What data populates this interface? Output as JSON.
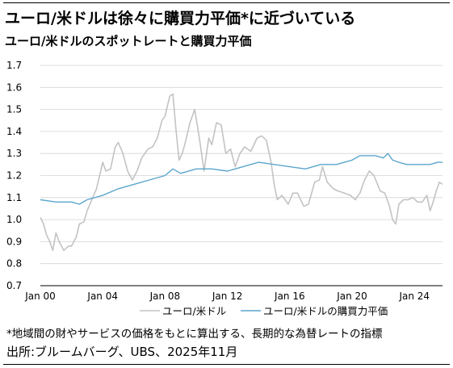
{
  "title": "ユーロ/米ドルは徐々に購買力平価*に近づいている",
  "subtitle": "ユーロ/米ドルのスポットレートと購買力平価",
  "note": "*地域間の財やサービスの価格をもとに算出する、長期的な為替レートの指標",
  "source": "出所:ブルームバーグ、UBS、2025年11月",
  "colors": {
    "spot": "#c3c3c3",
    "ppp": "#5ba6cc"
  },
  "chart_data": {
    "type": "line",
    "title": "ユーロ/米ドルのスポットレートと購買力平価",
    "ylim": [
      0.7,
      1.7
    ],
    "yticks": [
      "0.7",
      "0.8",
      "0.9",
      "1.0",
      "1.1",
      "1.2",
      "1.3",
      "1.4",
      "1.5",
      "1.6",
      "1.7"
    ],
    "xlim": [
      2000,
      2025.8
    ],
    "xticks": [
      {
        "x": 2000,
        "label": "Jan 00"
      },
      {
        "x": 2004,
        "label": "Jan 04"
      },
      {
        "x": 2008,
        "label": "Jan 08"
      },
      {
        "x": 2012,
        "label": "Jan 12"
      },
      {
        "x": 2016,
        "label": "Jan 16"
      },
      {
        "x": 2020,
        "label": "Jan 20"
      },
      {
        "x": 2024,
        "label": "Jan 24"
      }
    ],
    "grid": "horizontal",
    "legend": "bottom",
    "series": [
      {
        "name": "ユーロ/米ドル",
        "color": "#c3c3c3",
        "x": [
          2000.0,
          2000.2,
          2000.4,
          2000.6,
          2000.8,
          2001.0,
          2001.2,
          2001.5,
          2001.8,
          2002.0,
          2002.3,
          2002.5,
          2002.8,
          2003.0,
          2003.3,
          2003.6,
          2003.9,
          2004.0,
          2004.2,
          2004.5,
          2004.8,
          2005.0,
          2005.3,
          2005.6,
          2005.9,
          2006.2,
          2006.5,
          2006.9,
          2007.2,
          2007.5,
          2007.8,
          2008.0,
          2008.3,
          2008.5,
          2008.7,
          2008.9,
          2009.1,
          2009.3,
          2009.6,
          2009.9,
          2010.2,
          2010.5,
          2010.8,
          2011.0,
          2011.3,
          2011.6,
          2011.9,
          2012.2,
          2012.5,
          2012.8,
          2013.1,
          2013.5,
          2013.9,
          2014.2,
          2014.5,
          2014.8,
          2015.0,
          2015.2,
          2015.5,
          2015.9,
          2016.2,
          2016.5,
          2016.9,
          2017.2,
          2017.6,
          2017.9,
          2018.1,
          2018.4,
          2018.8,
          2019.1,
          2019.5,
          2019.9,
          2020.2,
          2020.5,
          2020.8,
          2021.1,
          2021.4,
          2021.8,
          2022.1,
          2022.4,
          2022.6,
          2022.8,
          2023.0,
          2023.3,
          2023.6,
          2023.9,
          2024.2,
          2024.5,
          2024.8,
          2025.0,
          2025.2,
          2025.4,
          2025.6,
          2025.8
        ],
        "values": [
          1.01,
          0.98,
          0.93,
          0.9,
          0.86,
          0.94,
          0.9,
          0.86,
          0.88,
          0.88,
          0.92,
          0.98,
          0.99,
          1.04,
          1.09,
          1.14,
          1.23,
          1.26,
          1.22,
          1.23,
          1.33,
          1.35,
          1.3,
          1.22,
          1.18,
          1.22,
          1.28,
          1.32,
          1.33,
          1.37,
          1.45,
          1.47,
          1.56,
          1.57,
          1.41,
          1.27,
          1.3,
          1.35,
          1.44,
          1.5,
          1.37,
          1.22,
          1.37,
          1.34,
          1.44,
          1.43,
          1.3,
          1.32,
          1.24,
          1.3,
          1.33,
          1.31,
          1.37,
          1.38,
          1.36,
          1.26,
          1.16,
          1.09,
          1.11,
          1.07,
          1.12,
          1.12,
          1.06,
          1.07,
          1.17,
          1.18,
          1.24,
          1.17,
          1.14,
          1.13,
          1.12,
          1.11,
          1.09,
          1.12,
          1.18,
          1.22,
          1.2,
          1.13,
          1.12,
          1.06,
          1.0,
          0.98,
          1.07,
          1.09,
          1.09,
          1.1,
          1.08,
          1.08,
          1.11,
          1.04,
          1.08,
          1.13,
          1.17,
          1.16
        ]
      },
      {
        "name": "ユーロ/米ドルの購買力平価",
        "color": "#5ba6cc",
        "x": [
          2000.0,
          2001.0,
          2002.0,
          2002.5,
          2003.0,
          2004.0,
          2005.0,
          2006.0,
          2007.0,
          2008.0,
          2008.5,
          2009.0,
          2010.0,
          2011.0,
          2012.0,
          2012.5,
          2013.0,
          2014.0,
          2015.0,
          2016.0,
          2017.0,
          2017.5,
          2018.0,
          2019.0,
          2019.5,
          2020.0,
          2020.5,
          2021.0,
          2021.5,
          2022.0,
          2022.3,
          2022.6,
          2023.0,
          2023.5,
          2024.0,
          2024.5,
          2025.0,
          2025.5,
          2025.8
        ],
        "values": [
          1.09,
          1.08,
          1.08,
          1.07,
          1.09,
          1.11,
          1.14,
          1.16,
          1.18,
          1.2,
          1.23,
          1.21,
          1.23,
          1.23,
          1.22,
          1.23,
          1.24,
          1.26,
          1.25,
          1.24,
          1.23,
          1.24,
          1.25,
          1.25,
          1.26,
          1.27,
          1.29,
          1.29,
          1.29,
          1.28,
          1.3,
          1.27,
          1.26,
          1.25,
          1.25,
          1.25,
          1.25,
          1.26,
          1.26
        ]
      }
    ]
  }
}
